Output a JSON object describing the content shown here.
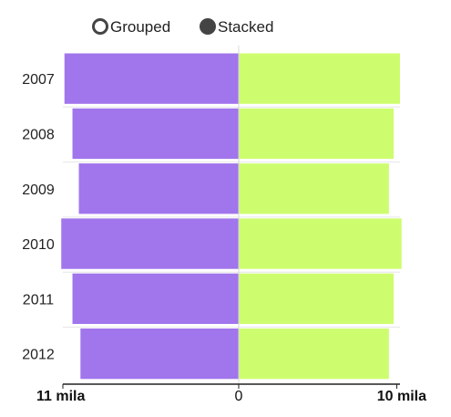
{
  "legend": {
    "options": [
      {
        "label": "Grouped",
        "selected": false
      },
      {
        "label": "Stacked",
        "selected": true
      }
    ]
  },
  "chart_data": {
    "type": "bar",
    "orientation": "horizontal",
    "mode": "stacked",
    "categories": [
      "2007",
      "2008",
      "2009",
      "2010",
      "2011",
      "2012"
    ],
    "series": [
      {
        "color": "#a175ec",
        "direction": "left",
        "values": [
          10.9,
          10.4,
          10.0,
          11.1,
          10.4,
          9.9
        ]
      },
      {
        "color": "#cdfd6e",
        "direction": "right",
        "values": [
          10.2,
          9.8,
          9.5,
          10.3,
          9.8,
          9.5
        ]
      }
    ],
    "x_ticks": [
      {
        "label": "11 mila",
        "value": -11,
        "bold": true
      },
      {
        "label": "0",
        "value": 0,
        "bold": false
      },
      {
        "label": "10 mila",
        "value": 10,
        "bold": true
      }
    ],
    "xlim": [
      -11,
      10.2
    ],
    "grid": true,
    "legend_position": "top-center"
  },
  "colors": {
    "left_series": "#a175ec",
    "right_series": "#cdfd6e",
    "axis": "#222222",
    "grid": "#e6e6e6",
    "zero_line": "#d9d9d9"
  }
}
